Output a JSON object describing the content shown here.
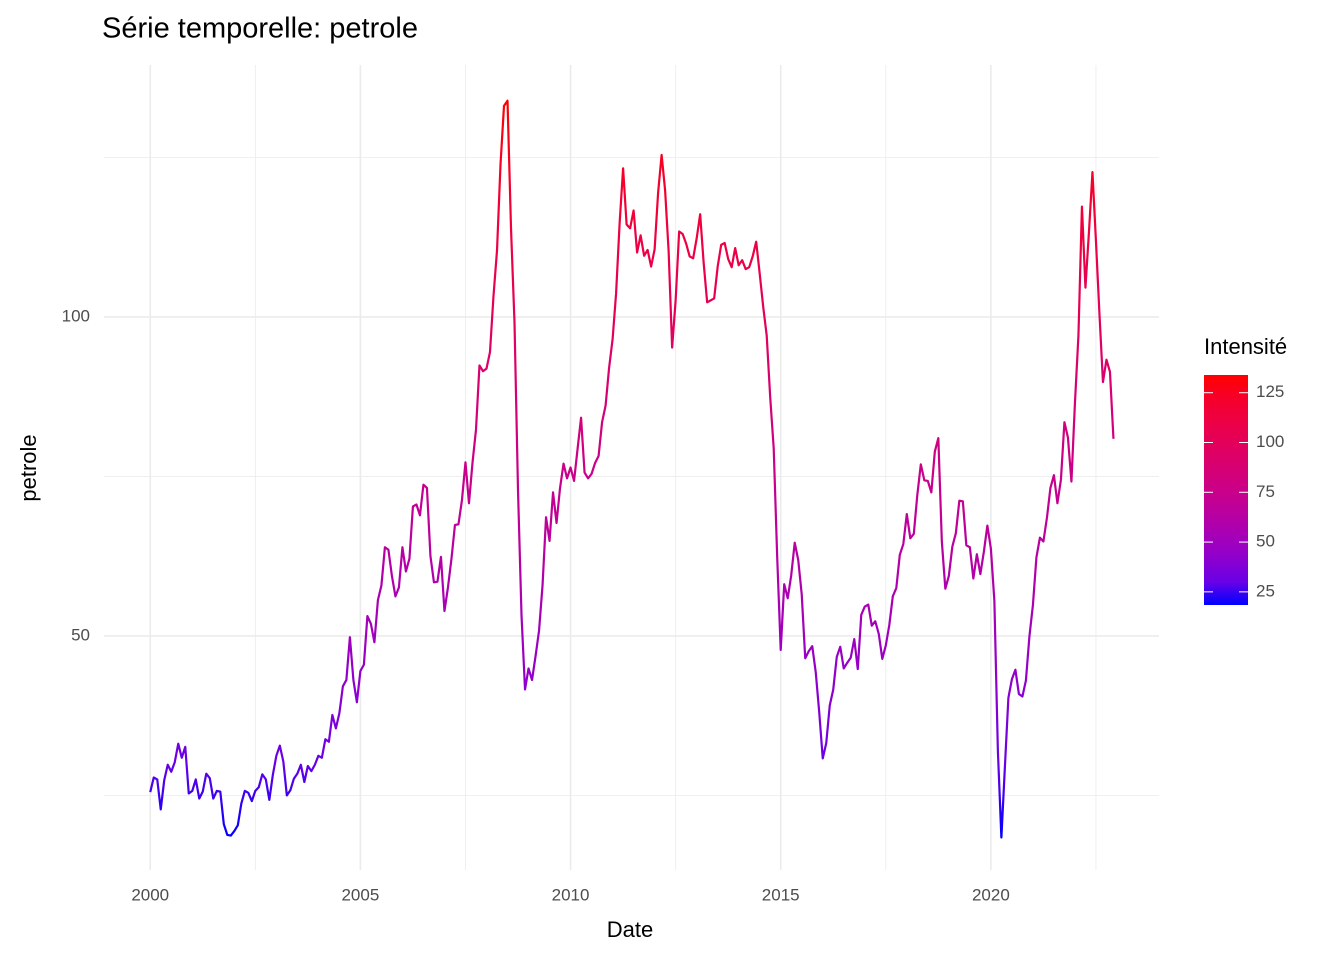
{
  "chart_data": {
    "type": "line",
    "title": "Série temporelle:  petrole",
    "x_label": "Date",
    "y_label": "petrole",
    "legend_title": "Intensité",
    "color_scale": {
      "low": "#0000ff",
      "high": "#ff0000"
    },
    "legend_ticks": [
      25,
      50,
      75,
      100,
      125
    ],
    "xlim": [
      1998.9,
      2024.0
    ],
    "xticks": [
      2000,
      2005,
      2010,
      2015,
      2020
    ],
    "xminor": [
      2002.5,
      2007.5,
      2012.5,
      2017.5,
      2022.5
    ],
    "ylim": [
      13.3,
      139.5
    ],
    "yticks": [
      50,
      100
    ],
    "yminor": [
      25,
      75,
      125
    ],
    "grid": true,
    "x": [
      "2000-01",
      "2000-02",
      "2000-03",
      "2000-04",
      "2000-05",
      "2000-06",
      "2000-07",
      "2000-08",
      "2000-09",
      "2000-10",
      "2000-11",
      "2000-12",
      "2001-01",
      "2001-02",
      "2001-03",
      "2001-04",
      "2001-05",
      "2001-06",
      "2001-07",
      "2001-08",
      "2001-09",
      "2001-10",
      "2001-11",
      "2001-12",
      "2002-01",
      "2002-02",
      "2002-03",
      "2002-04",
      "2002-05",
      "2002-06",
      "2002-07",
      "2002-08",
      "2002-09",
      "2002-10",
      "2002-11",
      "2002-12",
      "2003-01",
      "2003-02",
      "2003-03",
      "2003-04",
      "2003-05",
      "2003-06",
      "2003-07",
      "2003-08",
      "2003-09",
      "2003-10",
      "2003-11",
      "2003-12",
      "2004-01",
      "2004-02",
      "2004-03",
      "2004-04",
      "2004-05",
      "2004-06",
      "2004-07",
      "2004-08",
      "2004-09",
      "2004-10",
      "2004-11",
      "2004-12",
      "2005-01",
      "2005-02",
      "2005-03",
      "2005-04",
      "2005-05",
      "2005-06",
      "2005-07",
      "2005-08",
      "2005-09",
      "2005-10",
      "2005-11",
      "2005-12",
      "2006-01",
      "2006-02",
      "2006-03",
      "2006-04",
      "2006-05",
      "2006-06",
      "2006-07",
      "2006-08",
      "2006-09",
      "2006-10",
      "2006-11",
      "2006-12",
      "2007-01",
      "2007-02",
      "2007-03",
      "2007-04",
      "2007-05",
      "2007-06",
      "2007-07",
      "2007-08",
      "2007-09",
      "2007-10",
      "2007-11",
      "2007-12",
      "2008-01",
      "2008-02",
      "2008-03",
      "2008-04",
      "2008-05",
      "2008-06",
      "2008-07",
      "2008-08",
      "2008-09",
      "2008-10",
      "2008-11",
      "2008-12",
      "2009-01",
      "2009-02",
      "2009-03",
      "2009-04",
      "2009-05",
      "2009-06",
      "2009-07",
      "2009-08",
      "2009-09",
      "2009-10",
      "2009-11",
      "2009-12",
      "2010-01",
      "2010-02",
      "2010-03",
      "2010-04",
      "2010-05",
      "2010-06",
      "2010-07",
      "2010-08",
      "2010-09",
      "2010-10",
      "2010-11",
      "2010-12",
      "2011-01",
      "2011-02",
      "2011-03",
      "2011-04",
      "2011-05",
      "2011-06",
      "2011-07",
      "2011-08",
      "2011-09",
      "2011-10",
      "2011-11",
      "2011-12",
      "2012-01",
      "2012-02",
      "2012-03",
      "2012-04",
      "2012-05",
      "2012-06",
      "2012-07",
      "2012-08",
      "2012-09",
      "2012-10",
      "2012-11",
      "2012-12",
      "2013-01",
      "2013-02",
      "2013-03",
      "2013-04",
      "2013-05",
      "2013-06",
      "2013-07",
      "2013-08",
      "2013-09",
      "2013-10",
      "2013-11",
      "2013-12",
      "2014-01",
      "2014-02",
      "2014-03",
      "2014-04",
      "2014-05",
      "2014-06",
      "2014-07",
      "2014-08",
      "2014-09",
      "2014-10",
      "2014-11",
      "2014-12",
      "2015-01",
      "2015-02",
      "2015-03",
      "2015-04",
      "2015-05",
      "2015-06",
      "2015-07",
      "2015-08",
      "2015-09",
      "2015-10",
      "2015-11",
      "2015-12",
      "2016-01",
      "2016-02",
      "2016-03",
      "2016-04",
      "2016-05",
      "2016-06",
      "2016-07",
      "2016-08",
      "2016-09",
      "2016-10",
      "2016-11",
      "2016-12",
      "2017-01",
      "2017-02",
      "2017-03",
      "2017-04",
      "2017-05",
      "2017-06",
      "2017-07",
      "2017-08",
      "2017-09",
      "2017-10",
      "2017-11",
      "2017-12",
      "2018-01",
      "2018-02",
      "2018-03",
      "2018-04",
      "2018-05",
      "2018-06",
      "2018-07",
      "2018-08",
      "2018-09",
      "2018-10",
      "2018-11",
      "2018-12",
      "2019-01",
      "2019-02",
      "2019-03",
      "2019-04",
      "2019-05",
      "2019-06",
      "2019-07",
      "2019-08",
      "2019-09",
      "2019-10",
      "2019-11",
      "2019-12",
      "2020-01",
      "2020-02",
      "2020-03",
      "2020-04",
      "2020-05",
      "2020-06",
      "2020-07",
      "2020-08",
      "2020-09",
      "2020-10",
      "2020-11",
      "2020-12",
      "2021-01",
      "2021-02",
      "2021-03",
      "2021-04",
      "2021-05",
      "2021-06",
      "2021-07",
      "2021-08",
      "2021-09",
      "2021-10",
      "2021-11",
      "2021-12",
      "2022-01",
      "2022-02",
      "2022-03",
      "2022-04",
      "2022-05",
      "2022-06",
      "2022-07",
      "2022-08",
      "2022-09",
      "2022-10",
      "2022-11",
      "2022-12"
    ],
    "values": [
      25.5,
      27.8,
      27.5,
      22.8,
      27.4,
      29.8,
      28.7,
      30.2,
      33.1,
      30.9,
      32.6,
      25.3,
      25.7,
      27.5,
      24.5,
      25.6,
      28.4,
      27.7,
      24.5,
      25.7,
      25.6,
      20.5,
      18.8,
      18.7,
      19.4,
      20.3,
      23.7,
      25.7,
      25.4,
      24.1,
      25.7,
      26.3,
      28.3,
      27.5,
      24.3,
      28.2,
      31.2,
      32.8,
      30.3,
      25.0,
      25.8,
      27.6,
      28.4,
      29.8,
      27.1,
      29.6,
      28.8,
      29.8,
      31.2,
      30.9,
      33.8,
      33.4,
      37.6,
      35.5,
      37.9,
      42.1,
      43.1,
      49.8,
      43.1,
      39.6,
      44.5,
      45.5,
      53.1,
      51.9,
      49.0,
      55.6,
      57.9,
      63.9,
      63.5,
      59.4,
      56.2,
      57.6,
      63.9,
      60.1,
      62.1,
      70.3,
      70.6,
      68.9,
      73.7,
      73.2,
      62.5,
      58.4,
      58.5,
      62.4,
      53.9,
      57.6,
      62.1,
      67.4,
      67.5,
      71.3,
      77.2,
      70.8,
      77.1,
      82.3,
      92.4,
      91.5,
      91.9,
      94.5,
      103.3,
      110.4,
      123.9,
      133.1,
      133.9,
      113.9,
      99.1,
      72.8,
      53.2,
      41.6,
      44.9,
      43.1,
      46.8,
      50.8,
      57.9,
      68.6,
      64.9,
      72.5,
      67.7,
      73.2,
      77.0,
      74.7,
      76.4,
      74.3,
      79.3,
      84.2,
      75.6,
      74.7,
      75.4,
      77.1,
      78.2,
      83.5,
      86.1,
      92.0,
      96.5,
      103.7,
      114.6,
      123.3,
      114.5,
      113.9,
      116.7,
      110.1,
      112.8,
      109.6,
      110.5,
      107.9,
      110.6,
      119.5,
      125.4,
      119.8,
      110.3,
      95.2,
      102.6,
      113.4,
      113.0,
      111.5,
      109.5,
      109.2,
      112.3,
      116.1,
      108.5,
      102.3,
      102.6,
      102.9,
      107.9,
      111.3,
      111.6,
      109.1,
      107.8,
      110.8,
      108.1,
      108.9,
      107.5,
      107.8,
      109.5,
      111.8,
      106.8,
      101.6,
      97.1,
      87.4,
      79.4,
      62.3,
      47.8,
      58.1,
      55.9,
      59.5,
      64.6,
      61.9,
      56.5,
      46.5,
      47.6,
      48.4,
      44.3,
      38.0,
      30.8,
      33.2,
      39.1,
      41.6,
      46.7,
      48.3,
      44.9,
      45.8,
      46.6,
      49.5,
      44.8,
      53.3,
      54.6,
      54.9,
      51.6,
      52.3,
      50.3,
      46.4,
      48.5,
      51.7,
      56.2,
      57.5,
      62.7,
      64.4,
      69.1,
      65.3,
      66.0,
      72.1,
      76.9,
      74.4,
      74.3,
      72.5,
      78.9,
      81.0,
      64.8,
      57.4,
      59.4,
      64.0,
      66.1,
      71.2,
      71.1,
      64.2,
      63.9,
      59.0,
      62.8,
      59.7,
      63.2,
      67.3,
      63.7,
      55.5,
      32.0,
      18.4,
      29.4,
      40.3,
      43.2,
      44.7,
      40.9,
      40.5,
      43.0,
      49.9,
      54.8,
      62.3,
      65.4,
      64.8,
      68.5,
      73.2,
      75.2,
      70.8,
      74.5,
      83.5,
      81.1,
      74.2,
      86.5,
      97.1,
      117.3,
      104.6,
      113.3,
      122.7,
      111.9,
      100.5,
      89.8,
      93.3,
      91.4,
      80.9
    ]
  }
}
